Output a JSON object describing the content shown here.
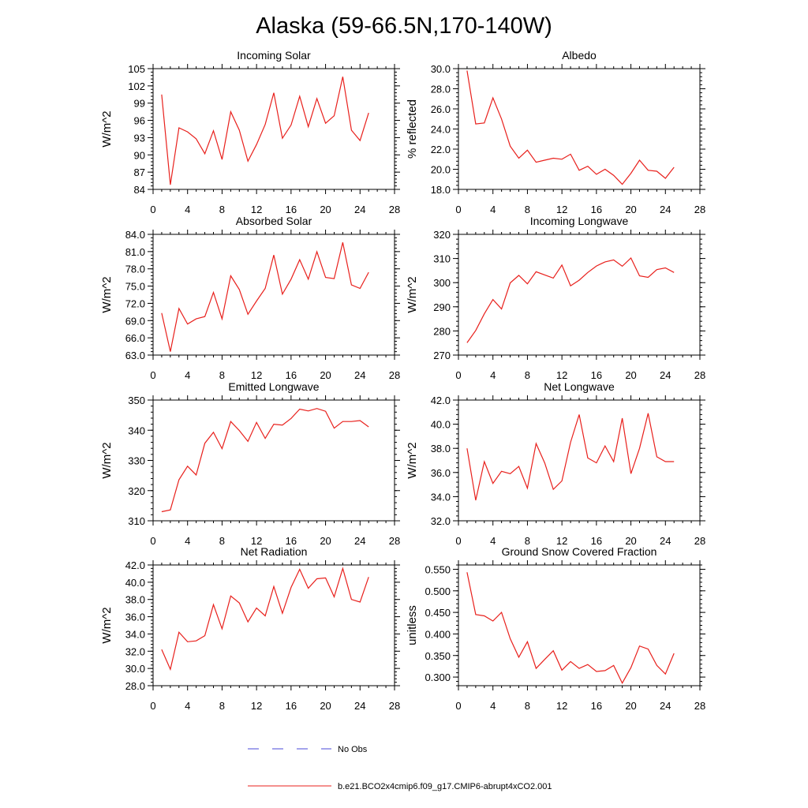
{
  "figure": {
    "title": "Alaska (59-66.5N,170-140W)",
    "legend": [
      {
        "label": "No Obs",
        "color": "#4a4ad8",
        "style": "dashed"
      },
      {
        "label": "b.e21.BCO2x4cmip6.f09_g17.CMIP6-abrupt4xCO2.001",
        "color": "#e8201c",
        "style": "solid"
      }
    ]
  },
  "chart_data": [
    {
      "type": "line",
      "title": "Incoming Solar",
      "ylabel": "W/m^2",
      "xlabel": "",
      "xlim": [
        0,
        28
      ],
      "ylim": [
        84,
        105
      ],
      "xticks": [
        0,
        4,
        8,
        12,
        16,
        20,
        24,
        28
      ],
      "yticks": [
        "84",
        "87",
        "90",
        "93",
        "96",
        "99",
        "102",
        "105"
      ],
      "grid": false,
      "series": [
        {
          "color": "#e8201c",
          "x": [
            1,
            2,
            3,
            4,
            5,
            6,
            7,
            8,
            9,
            10,
            11,
            12,
            13,
            14,
            15,
            16,
            17,
            18,
            19,
            20,
            21,
            22,
            23,
            24,
            25
          ],
          "y": [
            100.5,
            84.8,
            94.7,
            94.0,
            92.8,
            90.2,
            94.2,
            89.2,
            97.5,
            94.3,
            88.9,
            91.8,
            95.3,
            100.8,
            92.9,
            95.2,
            100.2,
            94.9,
            99.8,
            95.5,
            96.8,
            103.6,
            94.3,
            92.5,
            97.3
          ]
        }
      ]
    },
    {
      "type": "line",
      "title": "Albedo",
      "ylabel": "% reflected",
      "xlabel": "",
      "xlim": [
        0,
        28
      ],
      "ylim": [
        18,
        30
      ],
      "xticks": [
        0,
        4,
        8,
        12,
        16,
        20,
        24,
        28
      ],
      "yticks": [
        "18.0",
        "20.0",
        "22.0",
        "24.0",
        "26.0",
        "28.0",
        "30.0"
      ],
      "grid": false,
      "series": [
        {
          "color": "#e8201c",
          "x": [
            1,
            2,
            3,
            4,
            5,
            6,
            7,
            8,
            9,
            10,
            11,
            12,
            13,
            14,
            15,
            16,
            17,
            18,
            19,
            20,
            21,
            22,
            23,
            24,
            25
          ],
          "y": [
            29.8,
            24.5,
            24.6,
            27.1,
            25.0,
            22.3,
            21.1,
            21.9,
            20.7,
            20.9,
            21.1,
            21.0,
            21.5,
            19.9,
            20.3,
            19.5,
            20.0,
            19.4,
            18.5,
            19.6,
            20.9,
            19.9,
            19.8,
            19.1,
            20.2
          ]
        }
      ]
    },
    {
      "type": "line",
      "title": "Absorbed Solar",
      "ylabel": "W/m^2",
      "xlabel": "",
      "xlim": [
        0,
        28
      ],
      "ylim": [
        63,
        84
      ],
      "xticks": [
        0,
        4,
        8,
        12,
        16,
        20,
        24,
        28
      ],
      "yticks": [
        "63.0",
        "66.0",
        "69.0",
        "72.0",
        "75.0",
        "78.0",
        "81.0",
        "84.0"
      ],
      "grid": false,
      "series": [
        {
          "color": "#e8201c",
          "x": [
            1,
            2,
            3,
            4,
            5,
            6,
            7,
            8,
            9,
            10,
            11,
            12,
            13,
            14,
            15,
            16,
            17,
            18,
            19,
            20,
            21,
            22,
            23,
            24,
            25
          ],
          "y": [
            70.3,
            63.6,
            71.1,
            68.4,
            69.3,
            69.7,
            73.9,
            69.3,
            76.8,
            74.4,
            70.1,
            72.4,
            74.6,
            80.4,
            73.6,
            76.2,
            79.6,
            76.2,
            81.0,
            76.5,
            76.3,
            82.6,
            75.2,
            74.6,
            77.4
          ]
        }
      ]
    },
    {
      "type": "line",
      "title": "Incoming Longwave",
      "ylabel": "W/m^2",
      "xlabel": "",
      "xlim": [
        0,
        28
      ],
      "ylim": [
        270,
        320
      ],
      "xticks": [
        0,
        4,
        8,
        12,
        16,
        20,
        24,
        28
      ],
      "yticks": [
        "270",
        "280",
        "290",
        "300",
        "310",
        "320"
      ],
      "grid": false,
      "series": [
        {
          "color": "#e8201c",
          "x": [
            1,
            2,
            3,
            4,
            5,
            6,
            7,
            8,
            9,
            10,
            11,
            12,
            13,
            14,
            15,
            16,
            17,
            18,
            19,
            20,
            21,
            22,
            23,
            24,
            25
          ],
          "y": [
            275.1,
            280.2,
            287.1,
            293.0,
            289.1,
            299.9,
            303.0,
            299.5,
            304.5,
            303.2,
            301.9,
            307.3,
            298.7,
            301.0,
            304.2,
            306.9,
            308.6,
            309.4,
            306.8,
            310.2,
            302.8,
            302.2,
            305.4,
            306.1,
            304.2
          ]
        }
      ]
    },
    {
      "type": "line",
      "title": "Emitted Longwave",
      "ylabel": "W/m^2",
      "xlabel": "",
      "xlim": [
        0,
        28
      ],
      "ylim": [
        310,
        350
      ],
      "xticks": [
        0,
        4,
        8,
        12,
        16,
        20,
        24,
        28
      ],
      "yticks": [
        "310",
        "320",
        "330",
        "340",
        "350"
      ],
      "grid": false,
      "series": [
        {
          "color": "#e8201c",
          "x": [
            1,
            2,
            3,
            4,
            5,
            6,
            7,
            8,
            9,
            10,
            11,
            12,
            13,
            14,
            15,
            16,
            17,
            18,
            19,
            20,
            21,
            22,
            23,
            24,
            25
          ],
          "y": [
            313.0,
            313.6,
            323.6,
            328.1,
            325.2,
            335.7,
            339.3,
            333.9,
            342.9,
            339.9,
            336.3,
            342.6,
            337.3,
            342.0,
            341.7,
            343.9,
            347.0,
            346.4,
            347.2,
            346.3,
            340.7,
            342.9,
            342.9,
            343.2,
            341.1
          ]
        }
      ]
    },
    {
      "type": "line",
      "title": "Net Longwave",
      "ylabel": "W/m^2",
      "xlabel": "",
      "xlim": [
        0,
        28
      ],
      "ylim": [
        32,
        42
      ],
      "xticks": [
        0,
        4,
        8,
        12,
        16,
        20,
        24,
        28
      ],
      "yticks": [
        "32.0",
        "34.0",
        "36.0",
        "38.0",
        "40.0",
        "42.0"
      ],
      "grid": false,
      "series": [
        {
          "color": "#e8201c",
          "x": [
            1,
            2,
            3,
            4,
            5,
            6,
            7,
            8,
            9,
            10,
            11,
            12,
            13,
            14,
            15,
            16,
            17,
            18,
            19,
            20,
            21,
            22,
            23,
            24,
            25
          ],
          "y": [
            38.0,
            33.7,
            36.9,
            35.1,
            36.1,
            35.9,
            36.5,
            34.7,
            38.4,
            36.8,
            34.6,
            35.3,
            38.5,
            40.8,
            37.2,
            36.8,
            38.2,
            36.9,
            40.5,
            35.9,
            38.0,
            40.9,
            37.3,
            36.9,
            36.9
          ]
        }
      ]
    },
    {
      "type": "line",
      "title": "Net Radiation",
      "ylabel": "W/m^2",
      "xlabel": "",
      "xlim": [
        0,
        28
      ],
      "ylim": [
        28,
        42
      ],
      "xticks": [
        0,
        4,
        8,
        12,
        16,
        20,
        24,
        28
      ],
      "yticks": [
        "28.0",
        "30.0",
        "32.0",
        "34.0",
        "36.0",
        "38.0",
        "40.0",
        "42.0"
      ],
      "grid": false,
      "series": [
        {
          "color": "#e8201c",
          "x": [
            1,
            2,
            3,
            4,
            5,
            6,
            7,
            8,
            9,
            10,
            11,
            12,
            13,
            14,
            15,
            16,
            17,
            18,
            19,
            20,
            21,
            22,
            23,
            24,
            25
          ],
          "y": [
            32.2,
            29.9,
            34.2,
            33.1,
            33.2,
            33.8,
            37.4,
            34.6,
            38.4,
            37.6,
            35.4,
            37.0,
            36.1,
            39.5,
            36.4,
            39.4,
            41.5,
            39.3,
            40.4,
            40.5,
            38.3,
            41.6,
            38.0,
            37.7,
            40.6
          ]
        }
      ]
    },
    {
      "type": "line",
      "title": "Ground Snow Covered Fraction",
      "ylabel": "unitless",
      "xlabel": "",
      "xlim": [
        0,
        28
      ],
      "ylim": [
        0.28,
        0.56
      ],
      "xticks": [
        0,
        4,
        8,
        12,
        16,
        20,
        24,
        28
      ],
      "yticks": [
        "0.300",
        "0.350",
        "0.400",
        "0.450",
        "0.500",
        "0.550"
      ],
      "grid": false,
      "series": [
        {
          "color": "#e8201c",
          "x": [
            1,
            2,
            3,
            4,
            5,
            6,
            7,
            8,
            9,
            10,
            11,
            12,
            13,
            14,
            15,
            16,
            17,
            18,
            19,
            20,
            21,
            22,
            23,
            24,
            25
          ],
          "y": [
            0.543,
            0.445,
            0.442,
            0.43,
            0.45,
            0.389,
            0.346,
            0.382,
            0.32,
            0.341,
            0.361,
            0.316,
            0.336,
            0.32,
            0.329,
            0.313,
            0.315,
            0.327,
            0.286,
            0.322,
            0.372,
            0.365,
            0.327,
            0.307,
            0.355
          ]
        }
      ]
    }
  ]
}
